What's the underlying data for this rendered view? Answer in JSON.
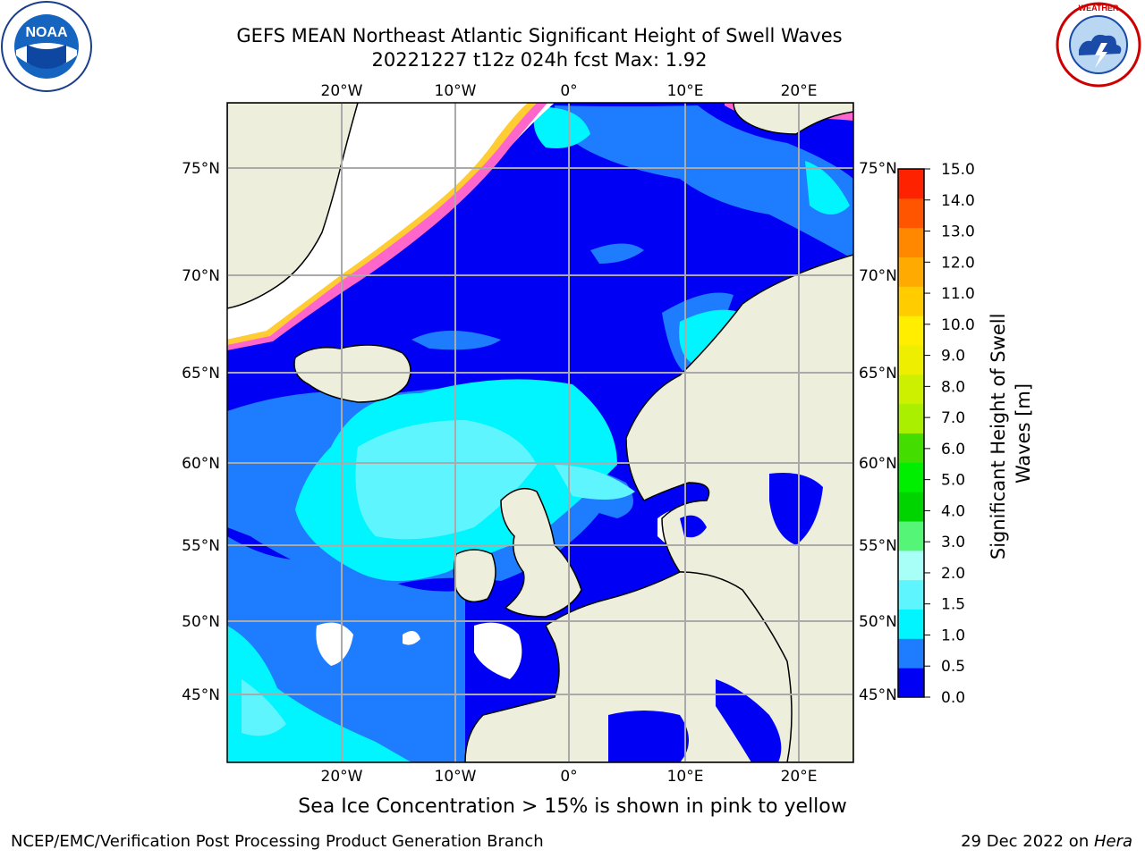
{
  "header": {
    "title_line1": "GEFS MEAN Northeast Atlantic Significant Height of Swell Waves",
    "title_line2": "20221227 t12z 024h fcst   Max: 1.92"
  },
  "logos": {
    "left": "NOAA",
    "right": "NATIONAL WEATHER SERVICE"
  },
  "map": {
    "lon_labels": [
      "20°W",
      "10°W",
      "0°",
      "10°E",
      "20°E"
    ],
    "lat_labels": [
      "75°N",
      "70°N",
      "65°N",
      "60°N",
      "55°N",
      "50°N",
      "45°N"
    ],
    "colors": {
      "land": "#eeeedd",
      "ocean_low": "#0000f5",
      "ocean_mid": "#1e7dff",
      "ocean_cyan": "#00f5ff",
      "ocean_light": "#5ff5ff",
      "ice": "#ff66cc",
      "ice_edge": "#ffcc33",
      "grid": "#aaaaaa"
    }
  },
  "colorbar": {
    "label_line1": "Significant Height of Swell",
    "label_line2": "Waves [m]",
    "ticks": [
      "15.0",
      "14.0",
      "13.0",
      "12.0",
      "11.0",
      "10.0",
      "9.0",
      "8.0",
      "7.0",
      "6.0",
      "5.0",
      "4.0",
      "3.0",
      "2.0",
      "1.5",
      "1.0",
      "0.5",
      "0.0"
    ],
    "colors": [
      "#0000f5",
      "#1e7dff",
      "#00f5ff",
      "#5ff5ff",
      "#a8fff8",
      "#55f577",
      "#00d400",
      "#00ee00",
      "#44dd00",
      "#aaee00",
      "#ccf000",
      "#eeee00",
      "#ffee00",
      "#ffcc00",
      "#ffaa00",
      "#ff8800",
      "#ff5500",
      "#ff2200"
    ]
  },
  "footer": {
    "note": "Sea Ice Concentration > 15% is shown in pink to yellow",
    "credit": "NCEP/EMC/Verification Post Processing Product Generation Branch",
    "date": "29 Dec 2022 on ",
    "host": "Hera"
  }
}
